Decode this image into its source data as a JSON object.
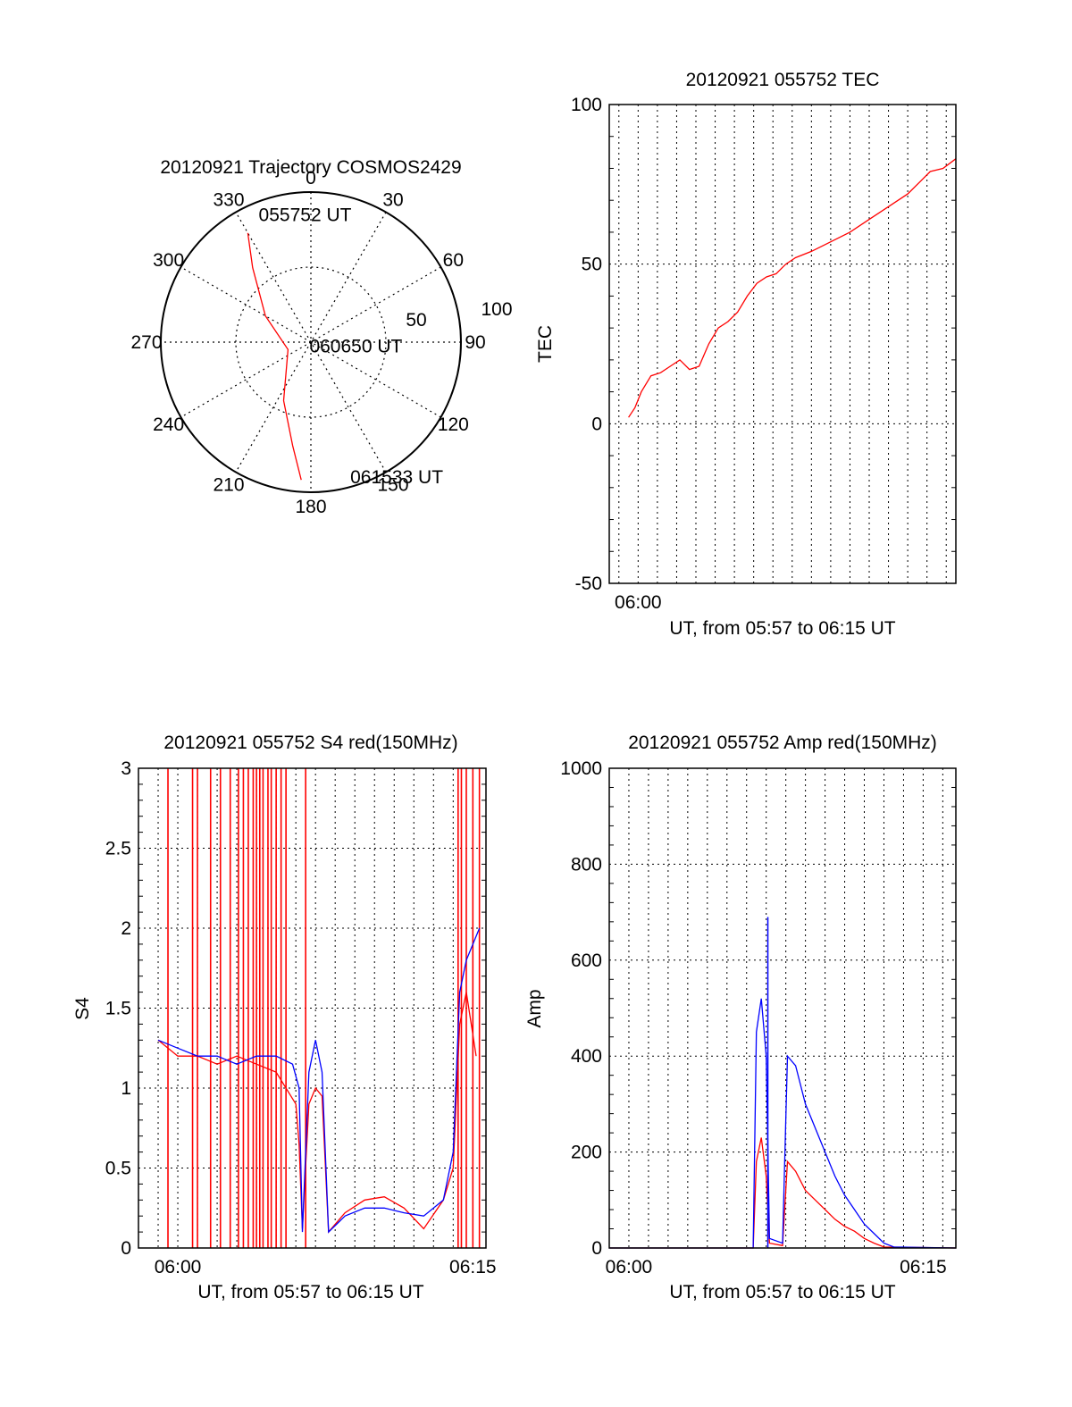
{
  "chart_data": [
    {
      "id": "trajectory",
      "type": "polar-trajectory",
      "title": "20120921 Trajectory COSMOS2429",
      "angle_ticks": [
        "0",
        "30",
        "60",
        "90",
        "120",
        "150",
        "180",
        "210",
        "240",
        "270",
        "300",
        "330"
      ],
      "radial_ticks": [
        "50",
        "100"
      ],
      "rlim": [
        0,
        100
      ],
      "grid": true,
      "line_color": "#ff0000",
      "trajectory": [
        {
          "az": 330,
          "zen": 84
        },
        {
          "az": 322,
          "zen": 63
        },
        {
          "az": 300,
          "zen": 35
        },
        {
          "az": 252,
          "zen": 16
        },
        {
          "az": 205,
          "zen": 43
        },
        {
          "az": 190,
          "zen": 70
        },
        {
          "az": 184,
          "zen": 92
        }
      ],
      "annotations": [
        {
          "text": "055752 UT",
          "az": 355,
          "zen": 85
        },
        {
          "text": "060650 UT",
          "az": 95,
          "zen": 17
        },
        {
          "text": "061533 UT",
          "az": 168,
          "zen": 92
        }
      ]
    },
    {
      "id": "tec",
      "type": "line",
      "title": "20120921 055752 TEC",
      "ylabel": "TEC",
      "xlabel": "UT, from 05:57 to 06:15 UT",
      "xlim": [
        "05:58:30",
        "06:16:30"
      ],
      "ylim": [
        -50,
        100
      ],
      "yticks": [
        "-50",
        "0",
        "50",
        "100"
      ],
      "xticks": [
        {
          "label": "06:00",
          "t": "06:00:00"
        }
      ],
      "grid": true,
      "series": [
        {
          "color": "#ff0000",
          "points": [
            [
              "05:59:30",
              2
            ],
            [
              "05:59:50",
              5
            ],
            [
              "06:00:10",
              10
            ],
            [
              "06:00:40",
              15
            ],
            [
              "06:01:10",
              16
            ],
            [
              "06:01:40",
              18
            ],
            [
              "06:02:10",
              20
            ],
            [
              "06:02:40",
              17
            ],
            [
              "06:03:10",
              18
            ],
            [
              "06:03:40",
              25
            ],
            [
              "06:04:10",
              30
            ],
            [
              "06:04:40",
              32
            ],
            [
              "06:05:10",
              35
            ],
            [
              "06:05:40",
              40
            ],
            [
              "06:06:10",
              44
            ],
            [
              "06:06:40",
              46
            ],
            [
              "06:07:10",
              47
            ],
            [
              "06:07:40",
              50
            ],
            [
              "06:08:10",
              52
            ],
            [
              "06:09:00",
              54
            ],
            [
              "06:10:00",
              57
            ],
            [
              "06:11:00",
              60
            ],
            [
              "06:12:00",
              64
            ],
            [
              "06:13:00",
              68
            ],
            [
              "06:14:00",
              72
            ],
            [
              "06:14:40",
              76
            ],
            [
              "06:15:10",
              79
            ],
            [
              "06:15:50",
              80
            ],
            [
              "06:16:30",
              83
            ]
          ]
        }
      ]
    },
    {
      "id": "s4",
      "type": "line",
      "title": "20120921 055752 S4 red(150MHz)",
      "ylabel": "S4",
      "xlabel": "UT, from 05:57 to 06:15 UT",
      "xlim": [
        "05:58:00",
        "06:15:40"
      ],
      "ylim": [
        0,
        3
      ],
      "yticks": [
        "0",
        "0.5",
        "1",
        "1.5",
        "2",
        "2.5",
        "3"
      ],
      "xticks": [
        {
          "label": "06:00",
          "t": "06:00:00"
        },
        {
          "label": "06:15",
          "t": "06:15:00"
        }
      ],
      "grid": true,
      "series": [
        {
          "color": "#ff0000",
          "points": [
            [
              "05:59:00",
              1.3
            ],
            [
              "06:00:00",
              1.2
            ],
            [
              "06:01:00",
              1.2
            ],
            [
              "06:02:00",
              1.15
            ],
            [
              "06:03:00",
              1.2
            ],
            [
              "06:04:00",
              1.15
            ],
            [
              "06:05:00",
              1.1
            ],
            [
              "06:06:00",
              0.9
            ],
            [
              "06:06:10",
              0.65
            ],
            [
              "06:06:20",
              0.12
            ],
            [
              "06:06:40",
              0.9
            ],
            [
              "06:07:00",
              1.0
            ],
            [
              "06:07:20",
              0.95
            ],
            [
              "06:07:40",
              0.1
            ],
            [
              "06:08:30",
              0.22
            ],
            [
              "06:09:30",
              0.3
            ],
            [
              "06:10:30",
              0.32
            ],
            [
              "06:11:30",
              0.25
            ],
            [
              "06:12:30",
              0.12
            ],
            [
              "06:13:30",
              0.3
            ],
            [
              "06:14:00",
              0.5
            ],
            [
              "06:14:20",
              1.4
            ],
            [
              "06:14:40",
              1.6
            ],
            [
              "06:15:10",
              1.2
            ]
          ],
          "spikes": [
            "05:59:30",
            "06:00:45",
            "06:01:00",
            "06:01:40",
            "06:02:10",
            "06:02:40",
            "06:03:05",
            "06:03:20",
            "06:03:35",
            "06:03:50",
            "06:04:00",
            "06:04:10",
            "06:04:20",
            "06:04:35",
            "06:04:45",
            "06:05:00",
            "06:05:15",
            "06:05:30",
            "06:06:30",
            "06:14:15",
            "06:14:25",
            "06:14:40",
            "06:15:00",
            "06:15:20"
          ]
        },
        {
          "color": "#0000ff",
          "points": [
            [
              "05:59:00",
              1.3
            ],
            [
              "06:00:00",
              1.25
            ],
            [
              "06:01:00",
              1.2
            ],
            [
              "06:02:00",
              1.2
            ],
            [
              "06:03:00",
              1.15
            ],
            [
              "06:04:00",
              1.2
            ],
            [
              "06:05:00",
              1.2
            ],
            [
              "06:05:50",
              1.15
            ],
            [
              "06:06:10",
              1.0
            ],
            [
              "06:06:20",
              0.1
            ],
            [
              "06:06:40",
              1.1
            ],
            [
              "06:07:00",
              1.3
            ],
            [
              "06:07:20",
              1.1
            ],
            [
              "06:07:40",
              0.1
            ],
            [
              "06:08:30",
              0.2
            ],
            [
              "06:09:30",
              0.25
            ],
            [
              "06:10:30",
              0.25
            ],
            [
              "06:11:30",
              0.22
            ],
            [
              "06:12:30",
              0.2
            ],
            [
              "06:13:30",
              0.3
            ],
            [
              "06:14:00",
              0.6
            ],
            [
              "06:14:20",
              1.6
            ],
            [
              "06:14:40",
              1.8
            ],
            [
              "06:15:20",
              2.0
            ]
          ]
        }
      ]
    },
    {
      "id": "amp",
      "type": "line",
      "title": "20120921 055752 Amp red(150MHz)",
      "ylabel": "Amp",
      "xlabel": "UT, from 05:57 to 06:15 UT",
      "xlim": [
        "05:59:00",
        "06:16:40"
      ],
      "ylim": [
        0,
        1000
      ],
      "yticks": [
        "0",
        "200",
        "400",
        "600",
        "800",
        "1000"
      ],
      "xticks": [
        {
          "label": "06:00",
          "t": "06:00:00"
        },
        {
          "label": "06:15",
          "t": "06:15:00"
        }
      ],
      "grid": true,
      "series": [
        {
          "color": "#ff0000",
          "points": [
            [
              "05:59:00",
              0
            ],
            [
              "06:06:00",
              0
            ],
            [
              "06:06:20",
              0
            ],
            [
              "06:06:30",
              180
            ],
            [
              "06:06:45",
              230
            ],
            [
              "06:07:00",
              150
            ],
            [
              "06:07:10",
              10
            ],
            [
              "06:07:50",
              5
            ],
            [
              "06:08:05",
              180
            ],
            [
              "06:08:30",
              160
            ],
            [
              "06:09:00",
              120
            ],
            [
              "06:09:30",
              100
            ],
            [
              "06:10:00",
              80
            ],
            [
              "06:10:30",
              60
            ],
            [
              "06:11:00",
              45
            ],
            [
              "06:11:30",
              35
            ],
            [
              "06:12:00",
              20
            ],
            [
              "06:12:30",
              10
            ],
            [
              "06:13:00",
              2
            ],
            [
              "06:16:40",
              0
            ]
          ]
        },
        {
          "color": "#0000ff",
          "points": [
            [
              "05:59:00",
              0
            ],
            [
              "06:06:00",
              0
            ],
            [
              "06:06:20",
              0
            ],
            [
              "06:06:30",
              450
            ],
            [
              "06:06:45",
              520
            ],
            [
              "06:07:00",
              400
            ],
            [
              "06:07:10",
              20
            ],
            [
              "06:07:50",
              10
            ],
            [
              "06:08:05",
              400
            ],
            [
              "06:08:30",
              380
            ],
            [
              "06:09:00",
              300
            ],
            [
              "06:09:30",
              250
            ],
            [
              "06:10:00",
              200
            ],
            [
              "06:10:30",
              150
            ],
            [
              "06:11:00",
              110
            ],
            [
              "06:11:30",
              80
            ],
            [
              "06:12:00",
              50
            ],
            [
              "06:12:30",
              30
            ],
            [
              "06:13:00",
              10
            ],
            [
              "06:13:30",
              2
            ],
            [
              "06:16:40",
              0
            ]
          ],
          "peak": {
            "t": "06:07:05",
            "v": 690
          }
        }
      ]
    }
  ]
}
